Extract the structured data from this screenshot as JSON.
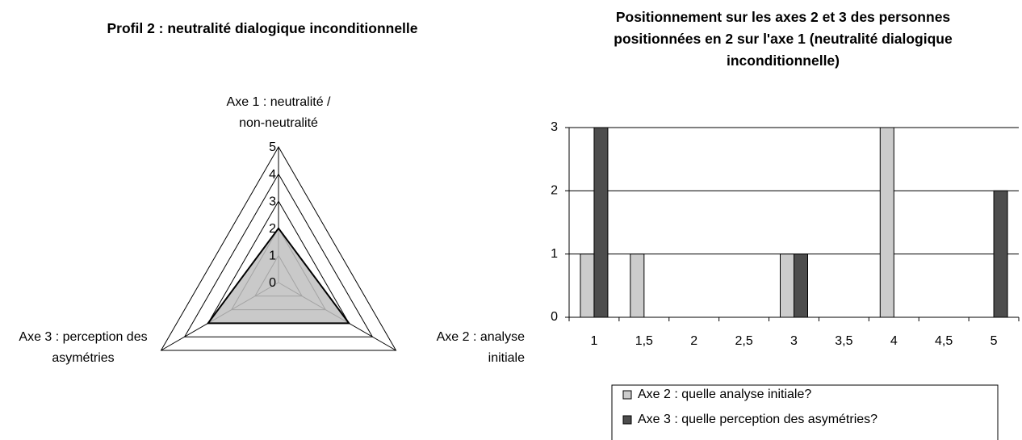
{
  "chart_data": [
    {
      "type": "radar",
      "title": "Profil 2 : neutralité dialogique inconditionnelle",
      "categories": [
        "Axe 1 : neutralité / non-neutralité",
        "Axe 2 : analyse initiale",
        "Axe 3 : perception des asymétries"
      ],
      "values": [
        2,
        3,
        3
      ],
      "color": "#c0c0c0",
      "ylim": [
        0,
        5
      ],
      "yticks": [
        0,
        1,
        2,
        3,
        4,
        5
      ],
      "grid": true
    },
    {
      "type": "bar",
      "title": "Positionnement sur les axes 2 et 3 des personnes positionnées en 2 sur l'axe 1 (neutralité dialogique inconditionnelle)",
      "categories": [
        "1",
        "1,5",
        "2",
        "2,5",
        "3",
        "3,5",
        "4",
        "4,5",
        "5"
      ],
      "series": [
        {
          "name": "Axe 2 : quelle analyse initiale?",
          "color": "#cccccc",
          "values": [
            1,
            1,
            0,
            0,
            1,
            0,
            3,
            0,
            0
          ]
        },
        {
          "name": "Axe 3 : quelle perception des asymétries?",
          "color": "#4d4d4d",
          "values": [
            3,
            0,
            0,
            0,
            1,
            0,
            0,
            0,
            2
          ]
        }
      ],
      "ylim": [
        0,
        3
      ],
      "yticks": [
        0,
        1,
        2,
        3
      ],
      "grid": true,
      "legend": "bottom"
    }
  ]
}
